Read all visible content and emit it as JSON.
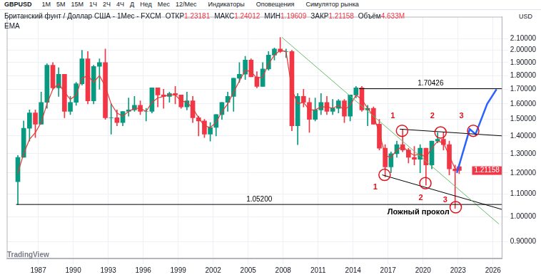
{
  "header": {
    "symbol": "GBPUSD",
    "intervals": [
      "1М",
      "5М",
      "15М",
      "1Ч",
      "2Ч",
      "4Ч",
      "Д",
      "Нед",
      "Мес",
      "12/Мес"
    ],
    "buttons": [
      "Индикаторы",
      "Оповещения",
      "Симулятор рынка"
    ],
    "title": "Британский фунт / Доллар США - 1Мес - FXCM",
    "ohlc": [
      {
        "label": "ОТКР",
        "value": "1.23181"
      },
      {
        "label": "МАКС",
        "value": "1.24012"
      },
      {
        "label": "МИН",
        "value": "1.19609"
      },
      {
        "label": "ЗАКР",
        "value": "1.21158"
      },
      {
        "label": "Объём",
        "value": "4.633M"
      }
    ]
  },
  "watermark": "TradingView",
  "chart_data": {
    "type": "candlestick",
    "ylabel": "USD",
    "log": "y",
    "grid": true,
    "color": {
      "up": "#089981",
      "down": "#f23645"
    },
    "x": [
      1985.25,
      1985.75,
      1986.25,
      1986.75,
      1987.25,
      1987.75,
      1988.25,
      1988.75,
      1989.25,
      1989.75,
      1990.25,
      1990.75,
      1991.25,
      1991.75,
      1992.25,
      1992.75,
      1993.25,
      1993.75,
      1994.25,
      1994.75,
      1995.25,
      1995.75,
      1996.25,
      1996.75,
      1997.25,
      1997.75,
      1998.25,
      1998.75,
      1999.25,
      1999.75,
      2000.25,
      2000.75,
      2001.25,
      2001.75,
      2002.25,
      2002.75,
      2003.25,
      2003.75,
      2004.25,
      2004.75,
      2005.25,
      2005.75,
      2006.25,
      2006.75,
      2007.25,
      2007.75,
      2008.25,
      2008.75,
      2009.25,
      2009.75,
      2010.25,
      2010.75,
      2011.25,
      2011.75,
      2012.25,
      2012.75,
      2013.25,
      2013.75,
      2014.25,
      2014.75,
      2015.25,
      2015.75,
      2016.25,
      2016.75,
      2017.25,
      2017.75,
      2018.25,
      2018.75,
      2019.25,
      2019.75,
      2020.25,
      2020.75,
      2021.25,
      2021.75,
      2022.25,
      2022.75,
      2023.1
    ],
    "open": [
      1.157,
      1.28,
      1.445,
      1.54,
      1.47,
      1.61,
      1.88,
      1.71,
      1.81,
      1.55,
      1.61,
      1.74,
      1.93,
      1.62,
      1.87,
      1.9,
      1.51,
      1.51,
      1.48,
      1.55,
      1.56,
      1.59,
      1.55,
      1.55,
      1.71,
      1.66,
      1.65,
      1.67,
      1.66,
      1.58,
      1.62,
      1.51,
      1.49,
      1.41,
      1.45,
      1.53,
      1.61,
      1.65,
      1.78,
      1.81,
      1.92,
      1.79,
      1.72,
      1.85,
      1.96,
      2.01,
      1.99,
      1.99,
      1.46,
      1.65,
      1.61,
      1.5,
      1.56,
      1.61,
      1.55,
      1.57,
      1.62,
      1.52,
      1.66,
      1.71,
      1.56,
      1.57,
      1.47,
      1.33,
      1.23,
      1.3,
      1.35,
      1.32,
      1.28,
      1.27,
      1.33,
      1.24,
      1.37,
      1.38,
      1.35,
      1.22,
      1.23181
    ],
    "high": [
      1.29,
      1.49,
      1.56,
      1.56,
      1.68,
      1.89,
      1.9,
      1.86,
      1.81,
      1.65,
      1.75,
      2.0,
      1.99,
      1.88,
      1.93,
      2.01,
      1.6,
      1.56,
      1.55,
      1.64,
      1.65,
      1.62,
      1.57,
      1.71,
      1.71,
      1.7,
      1.68,
      1.72,
      1.66,
      1.68,
      1.65,
      1.52,
      1.5,
      1.48,
      1.53,
      1.61,
      1.68,
      1.78,
      1.9,
      1.95,
      1.93,
      1.83,
      1.9,
      1.99,
      2.02,
      2.11,
      2.01,
      2.0,
      1.67,
      1.7,
      1.64,
      1.64,
      1.67,
      1.65,
      1.63,
      1.63,
      1.63,
      1.66,
      1.72,
      1.72,
      1.59,
      1.58,
      1.5,
      1.35,
      1.31,
      1.37,
      1.44,
      1.33,
      1.34,
      1.35,
      1.33,
      1.37,
      1.42,
      1.42,
      1.37,
      1.24,
      1.24012
    ],
    "low": [
      1.052,
      1.28,
      1.37,
      1.39,
      1.47,
      1.57,
      1.7,
      1.65,
      1.51,
      1.53,
      1.59,
      1.73,
      1.6,
      1.6,
      1.7,
      1.5,
      1.41,
      1.46,
      1.46,
      1.52,
      1.55,
      1.53,
      1.49,
      1.54,
      1.58,
      1.57,
      1.61,
      1.6,
      1.57,
      1.56,
      1.48,
      1.4,
      1.39,
      1.37,
      1.4,
      1.5,
      1.55,
      1.55,
      1.75,
      1.77,
      1.79,
      1.71,
      1.72,
      1.84,
      1.92,
      1.98,
      1.94,
      1.43,
      1.35,
      1.58,
      1.42,
      1.49,
      1.53,
      1.53,
      1.53,
      1.54,
      1.48,
      1.49,
      1.64,
      1.55,
      1.46,
      1.47,
      1.32,
      1.18,
      1.2,
      1.28,
      1.31,
      1.25,
      1.24,
      1.2,
      1.14,
      1.22,
      1.36,
      1.32,
      1.19,
      1.035,
      1.19609
    ],
    "close": [
      1.28,
      1.445,
      1.54,
      1.47,
      1.61,
      1.88,
      1.71,
      1.81,
      1.55,
      1.61,
      1.74,
      1.93,
      1.62,
      1.87,
      1.9,
      1.51,
      1.51,
      1.48,
      1.55,
      1.56,
      1.59,
      1.55,
      1.55,
      1.71,
      1.66,
      1.65,
      1.67,
      1.66,
      1.58,
      1.62,
      1.51,
      1.49,
      1.41,
      1.45,
      1.53,
      1.61,
      1.65,
      1.78,
      1.81,
      1.92,
      1.79,
      1.72,
      1.85,
      1.96,
      2.01,
      1.99,
      1.99,
      1.46,
      1.65,
      1.61,
      1.5,
      1.56,
      1.61,
      1.55,
      1.57,
      1.62,
      1.52,
      1.66,
      1.71,
      1.56,
      1.57,
      1.47,
      1.33,
      1.23,
      1.3,
      1.35,
      1.32,
      1.28,
      1.27,
      1.33,
      1.24,
      1.37,
      1.38,
      1.35,
      1.22,
      1.21,
      1.21158
    ],
    "series": [
      {
        "name": "EMA",
        "color": "#e53935",
        "values": [
          1.2,
          1.3,
          1.38,
          1.42,
          1.48,
          1.6,
          1.7,
          1.74,
          1.68,
          1.63,
          1.66,
          1.78,
          1.8,
          1.75,
          1.8,
          1.72,
          1.6,
          1.54,
          1.52,
          1.55,
          1.57,
          1.57,
          1.55,
          1.61,
          1.64,
          1.65,
          1.66,
          1.66,
          1.62,
          1.61,
          1.57,
          1.51,
          1.46,
          1.45,
          1.48,
          1.55,
          1.6,
          1.68,
          1.76,
          1.84,
          1.83,
          1.78,
          1.79,
          1.89,
          1.96,
          2.0,
          1.99,
          1.7,
          1.6,
          1.61,
          1.56,
          1.56,
          1.58,
          1.58,
          1.57,
          1.59,
          1.56,
          1.59,
          1.66,
          1.63,
          1.57,
          1.52,
          1.42,
          1.29,
          1.28,
          1.32,
          1.34,
          1.31,
          1.29,
          1.3,
          1.28,
          1.33,
          1.37,
          1.36,
          1.29,
          1.22,
          1.22
        ]
      }
    ],
    "xlim": [
      1984.3,
      2026.8
    ],
    "xticks": [
      1987,
      1990,
      1993,
      1996,
      1999,
      2002,
      2005,
      2008,
      2011,
      2014,
      2017,
      2020,
      2023,
      2026
    ],
    "ylim": [
      0.84,
      2.3
    ],
    "yticks": [
      {
        "value": 0.9,
        "label": "0.90000"
      },
      {
        "value": 1,
        "label": "1.00000"
      },
      {
        "value": 1.1,
        "label": "1.10000"
      },
      {
        "value": 1.2,
        "label": "1.20000"
      },
      {
        "value": 1.3,
        "label": "1.30000"
      },
      {
        "value": 1.4,
        "label": "1.40000"
      },
      {
        "value": 1.5,
        "label": "1.50000"
      },
      {
        "value": 1.6,
        "label": "1.60000"
      },
      {
        "value": 1.7,
        "label": "1.70000"
      },
      {
        "value": 1.8,
        "label": "1.80000"
      },
      {
        "value": 1.9,
        "label": "1.90000"
      },
      {
        "value": 2,
        "label": "2.00000"
      },
      {
        "value": 2.1,
        "label": "2.10000"
      }
    ],
    "levels": [
      {
        "value": 1.70426,
        "label": "1.70426",
        "x_from": 2014.5,
        "color": "#000000"
      },
      {
        "value": 1.052,
        "label": "1.05200",
        "x_from": 1985.1,
        "color": "#000000"
      }
    ],
    "trendlines": [
      {
        "color": "#66bb6a",
        "line_style": "solid",
        "x": [
          2007.9,
          2026.5
        ],
        "y": [
          2.11,
          0.97
        ]
      },
      {
        "color": "#000000",
        "line_style": "solid",
        "x": [
          2016.5,
          2026.8
        ],
        "y": [
          1.19,
          1.03
        ]
      },
      {
        "color": "#000000",
        "line_style": "solid",
        "x": [
          2018.0,
          2026.8
        ],
        "y": [
          1.44,
          1.4
        ]
      },
      {
        "color": "#2962ff",
        "line_style": "thick",
        "x": [
          2022.9,
          2024.0,
          2024.5,
          2025.5,
          2026.3
        ],
        "y": [
          1.2,
          1.44,
          1.41,
          1.6,
          1.7
        ]
      }
    ],
    "markers": {
      "color": "#e0121b",
      "points": [
        {
          "x": 2016.7,
          "y": 1.19
        },
        {
          "x": 2018.2,
          "y": 1.43
        },
        {
          "x": 2020.2,
          "y": 1.15
        },
        {
          "x": 2021.5,
          "y": 1.42
        },
        {
          "x": 2022.8,
          "y": 1.04
        },
        {
          "x": 2024.3,
          "y": 1.43
        }
      ]
    },
    "annotations": [
      {
        "text": "1",
        "x": 2015.9,
        "y": 1.13,
        "color": "#e0121b"
      },
      {
        "text": "1",
        "x": 2017.4,
        "y": 1.52,
        "color": "#e0121b"
      },
      {
        "text": "2",
        "x": 2019.8,
        "y": 1.08,
        "color": "#e0121b"
      },
      {
        "text": "2",
        "x": 2020.8,
        "y": 1.52,
        "color": "#e0121b"
      },
      {
        "text": "3",
        "x": 2021.9,
        "y": 1.07,
        "color": "#e0121b"
      },
      {
        "text": "3",
        "x": 2023.3,
        "y": 1.52,
        "color": "#e0121b"
      },
      {
        "text": "Ложный прокол",
        "x": 2019.6,
        "y": 1.02,
        "color": "#000000"
      }
    ]
  }
}
